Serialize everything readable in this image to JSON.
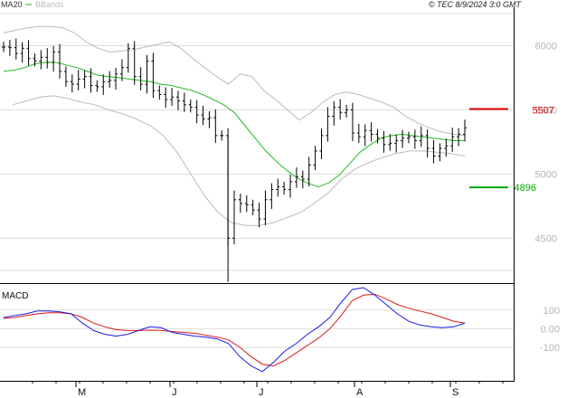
{
  "header": {
    "ma_label": "MA20",
    "bb_label": "BBands",
    "source_label": "© TEC 8/9/2024 3:0 GMT"
  },
  "macd": {
    "label": "MACD"
  },
  "annotations": {
    "resistance": {
      "label": "5507",
      "value": 5507,
      "color": "#dd0000"
    },
    "support": {
      "label": "4896",
      "value": 4896,
      "color": "#00aa00"
    }
  },
  "colors": {
    "bars": "#000000",
    "ma20": "#22bb22",
    "bbands": "#bbbbbb",
    "macd_line": "#1a1aee",
    "signal_line": "#dd1a1a",
    "grid": "#dddddd",
    "panel_bg": "#ffffff",
    "frame": "#000000"
  },
  "chart_data": [
    {
      "type": "ohlc",
      "title": "",
      "legend": [
        "MA20",
        "BBands"
      ],
      "y_ticks": [
        "6000",
        "5500",
        "5000",
        "4500"
      ],
      "x_ticks": [
        "M",
        "J",
        "J",
        "A",
        "S"
      ],
      "close_series": [
        5990,
        5985,
        5940,
        5980,
        5900,
        5880,
        5910,
        5870,
        5950,
        5800,
        5720,
        5700,
        5740,
        5760,
        5690,
        5680,
        5720,
        5730,
        5780,
        5830,
        5980,
        5760,
        5700,
        5880,
        5650,
        5620,
        5580,
        5600,
        5570,
        5540,
        5520,
        5460,
        5430,
        5440,
        5300,
        5300,
        4500,
        4800,
        4770,
        4760,
        4720,
        4650,
        4800,
        4880,
        4900,
        4880,
        4940,
        4980,
        4960,
        5070,
        5180,
        5300,
        5450,
        5520,
        5480,
        5500,
        5320,
        5290,
        5340,
        5310,
        5280,
        5230,
        5240,
        5260,
        5280,
        5290,
        5260,
        5300,
        5200,
        5140,
        5200,
        5220,
        5290,
        5310,
        5360
      ],
      "ma20_series": [
        5800,
        5810,
        5830,
        5860,
        5870,
        5870,
        5850,
        5830,
        5800,
        5770,
        5760,
        5750,
        5740,
        5730,
        5720,
        5700,
        5690,
        5670,
        5650,
        5620,
        5580,
        5540,
        5480,
        5380,
        5280,
        5180,
        5100,
        5030,
        4970,
        4930,
        4900,
        4930,
        4990,
        5080,
        5170,
        5230,
        5280,
        5300,
        5310,
        5300,
        5290,
        5280,
        5270,
        5260,
        5260
      ],
      "bb_upper_series": [
        6100,
        6120,
        6140,
        6150,
        6150,
        6140,
        6100,
        6030,
        5980,
        5950,
        5960,
        5970,
        5990,
        6010,
        6030,
        5980,
        5900,
        5830,
        5760,
        5700,
        5780,
        5760,
        5650,
        5580,
        5500,
        5420,
        5480,
        5560,
        5620,
        5640,
        5620,
        5590,
        5560,
        5520,
        5450,
        5400,
        5360,
        5330,
        5310,
        5300
      ],
      "bb_lower_series": [
        5540,
        5570,
        5600,
        5610,
        5590,
        5560,
        5540,
        5500,
        5470,
        5430,
        5380,
        5300,
        5170,
        5000,
        4830,
        4700,
        4620,
        4600,
        4600,
        4620,
        4660,
        4700,
        4770,
        4850,
        4960,
        5040,
        5090,
        5130,
        5160,
        5180,
        5180,
        5170,
        5160,
        5140
      ]
    },
    {
      "type": "line",
      "title": "",
      "y_ticks": [
        "100",
        "0.00",
        "-100"
      ],
      "series": [
        {
          "name": "",
          "values": [
            60,
            70,
            80,
            95,
            95,
            90,
            80,
            30,
            -10,
            -30,
            -40,
            -30,
            -10,
            10,
            5,
            -20,
            -30,
            -40,
            -45,
            -55,
            -80,
            -150,
            -200,
            -230,
            -180,
            -120,
            -80,
            -30,
            10,
            60,
            140,
            210,
            220,
            180,
            130,
            80,
            40,
            20,
            10,
            5,
            10,
            30
          ]
        },
        {
          "name": "",
          "values": [
            55,
            60,
            70,
            80,
            85,
            85,
            80,
            60,
            30,
            10,
            -5,
            -10,
            -10,
            -8,
            -10,
            -15,
            -20,
            -25,
            -35,
            -45,
            -60,
            -100,
            -150,
            -190,
            -200,
            -170,
            -130,
            -90,
            -50,
            0,
            70,
            150,
            180,
            185,
            160,
            130,
            110,
            95,
            80,
            60,
            40,
            30
          ]
        }
      ]
    }
  ]
}
